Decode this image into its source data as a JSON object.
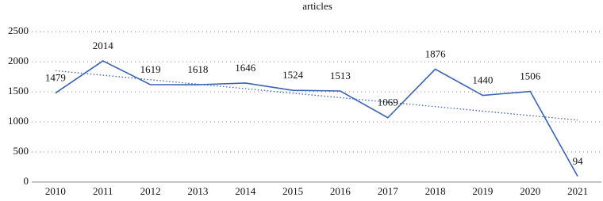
{
  "chart_data": {
    "type": "line",
    "title": "articles",
    "categories": [
      "2010",
      "2011",
      "2012",
      "2013",
      "2014",
      "2015",
      "2016",
      "2017",
      "2018",
      "2019",
      "2020",
      "2021"
    ],
    "values": [
      1479,
      2014,
      1619,
      1618,
      1646,
      1524,
      1513,
      1069,
      1876,
      1440,
      1506,
      94
    ],
    "color": "#3a64b0",
    "trend": [
      1850,
      1030
    ],
    "ylim": [
      0,
      2500
    ],
    "yticks": [
      0,
      500,
      1000,
      1500,
      2000,
      2500
    ],
    "grid": true
  }
}
